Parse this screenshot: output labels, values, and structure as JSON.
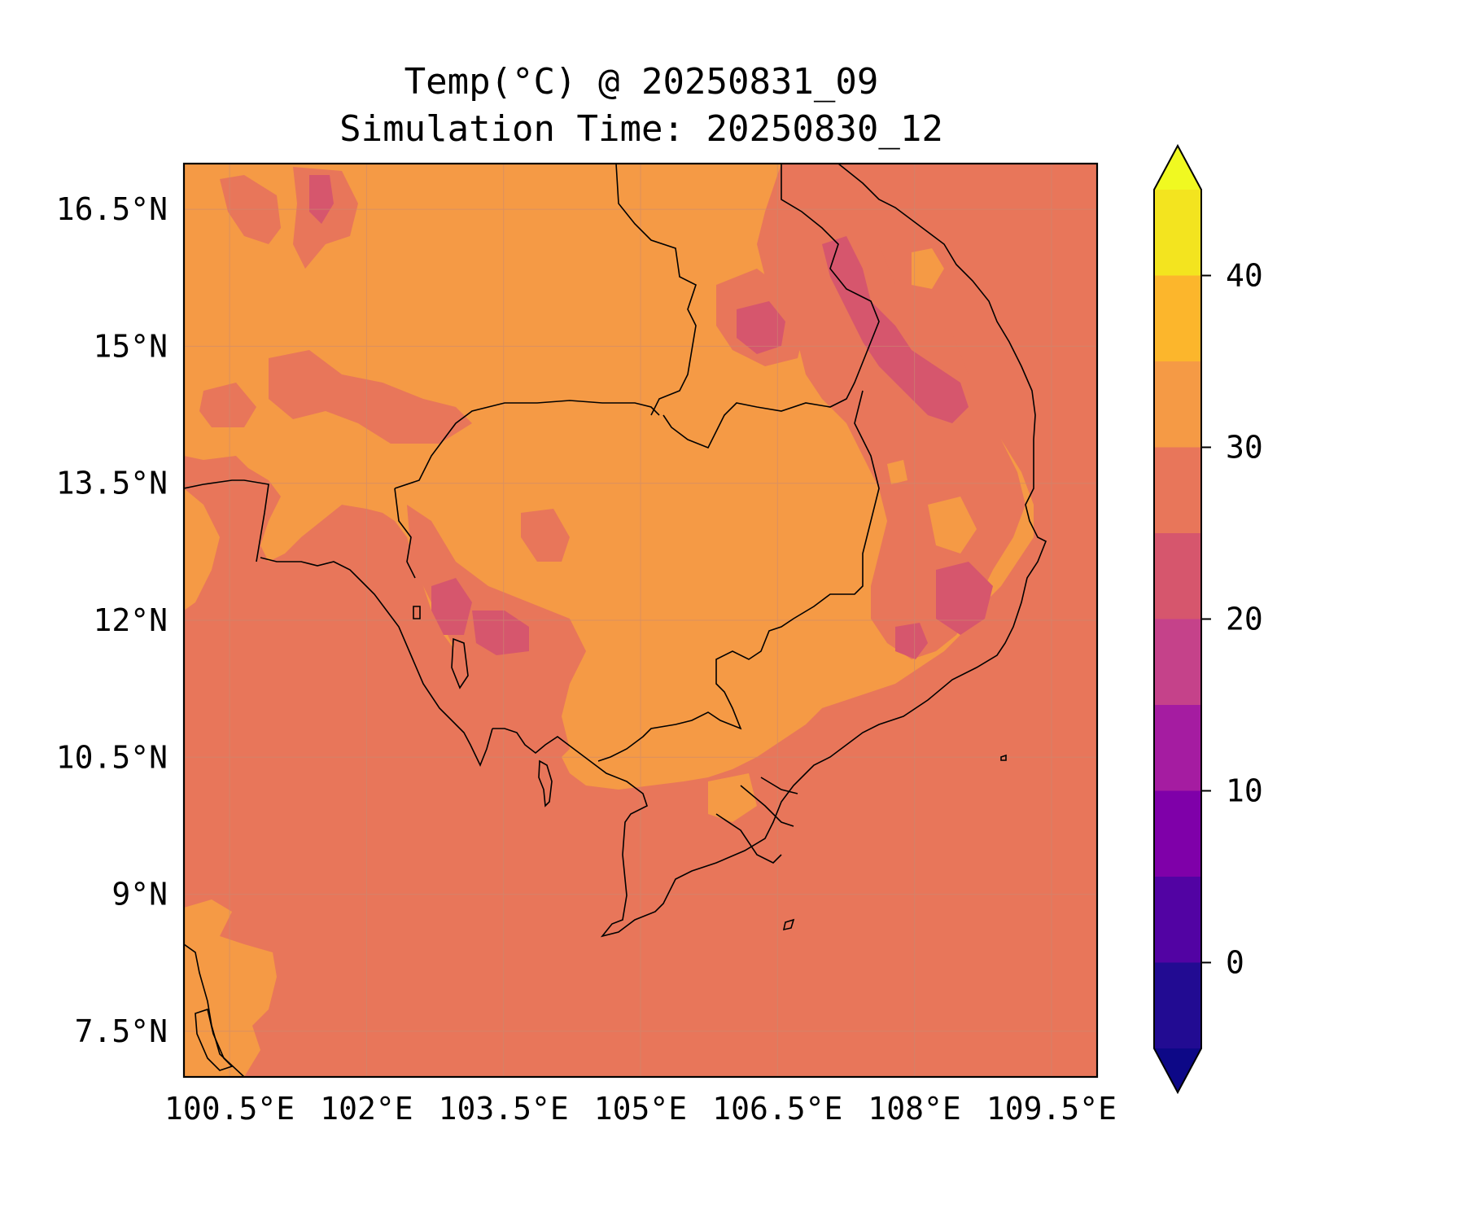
{
  "title": {
    "line1": "Temp(°C) @ 20250831_09",
    "line2": "Simulation Time: 20250830_12"
  },
  "map": {
    "lon_range": [
      100.0,
      110.0
    ],
    "lat_range": [
      7.0,
      17.0
    ],
    "x_ticks": [
      {
        "value": 100.5,
        "label": "100.5°E"
      },
      {
        "value": 102.0,
        "label": "102°E"
      },
      {
        "value": 103.5,
        "label": "103.5°E"
      },
      {
        "value": 105.0,
        "label": "105°E"
      },
      {
        "value": 106.5,
        "label": "106.5°E"
      },
      {
        "value": 108.0,
        "label": "108°E"
      },
      {
        "value": 109.5,
        "label": "109.5°E"
      }
    ],
    "y_ticks": [
      {
        "value": 16.5,
        "label": "16.5°N"
      },
      {
        "value": 15.0,
        "label": "15°N"
      },
      {
        "value": 13.5,
        "label": "13.5°N"
      },
      {
        "value": 12.0,
        "label": "12°N"
      },
      {
        "value": 10.5,
        "label": "10.5°N"
      },
      {
        "value": 9.0,
        "label": "9°N"
      },
      {
        "value": 7.5,
        "label": "7.5°N"
      }
    ],
    "grid": true,
    "colors": {
      "sea_background": "#e8765a",
      "band_30_35": "#f59a45",
      "band_20_25": "#d6566d",
      "band_15_20": "#c2418a",
      "coastline": "#000000",
      "gridline": "#c98a72"
    }
  },
  "colorbar": {
    "levels": [
      -5,
      0,
      5,
      10,
      15,
      20,
      25,
      30,
      35,
      40,
      45
    ],
    "colors": [
      "#220b92",
      "#5203a3",
      "#7f00a9",
      "#a51ca1",
      "#c5428a",
      "#d6566d",
      "#e8765a",
      "#f59a45",
      "#fcb62c",
      "#f3e41f"
    ],
    "under_color": "#0d0887",
    "over_color": "#f0f921",
    "ticks": [
      {
        "value": 0,
        "label": "0"
      },
      {
        "value": 10,
        "label": "10"
      },
      {
        "value": 20,
        "label": "20"
      },
      {
        "value": 30,
        "label": "30"
      },
      {
        "value": 40,
        "label": "40"
      }
    ]
  }
}
